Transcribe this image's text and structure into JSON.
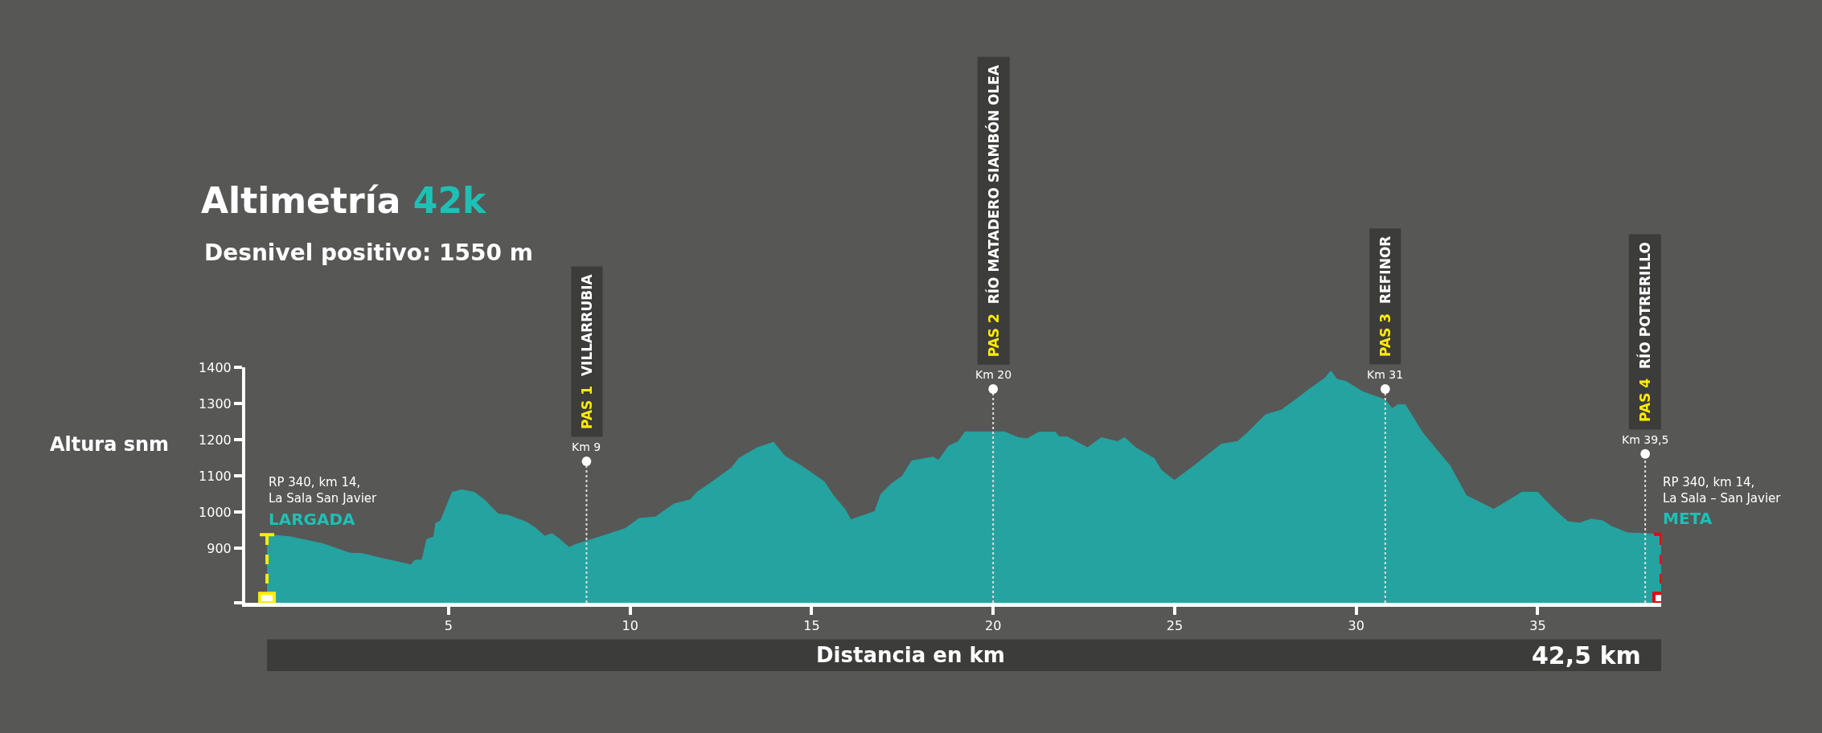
{
  "chart_data": {
    "type": "area",
    "title": "Altimetría 42k",
    "subtitle": "Desnivel positivo: 1550 m",
    "xlabel": "Distancia en km",
    "ylabel": "Altura snm",
    "x": [
      0,
      0.65,
      1.54,
      2.28,
      2.62,
      3.06,
      3.96,
      4.08,
      4.27,
      4.4,
      4.59,
      4.65,
      4.78,
      5.1,
      5.36,
      5.71,
      5.99,
      6.37,
      6.63,
      7.14,
      7.39,
      7.65,
      7.85,
      8.03,
      8.32,
      8.47,
      9.17,
      9.87,
      10.25,
      10.7,
      11.21,
      11.65,
      11.84,
      12.22,
      12.8,
      12.99,
      13.5,
      13.95,
      14.26,
      14.7,
      15.34,
      15.6,
      15.92,
      16.08,
      16.36,
      16.74,
      16.91,
      17.19,
      17.5,
      17.76,
      18.34,
      18.5,
      18.78,
      19.04,
      19.23,
      20.31,
      20.69,
      20.94,
      21.26,
      21.71,
      21.83,
      22.03,
      22.6,
      22.98,
      23.42,
      23.62,
      23.93,
      24.44,
      24.63,
      24.99,
      25.52,
      25.78,
      26.29,
      26.73,
      26.99,
      27.5,
      27.94,
      28.32,
      28.7,
      29.15,
      29.3,
      29.47,
      29.72,
      30.17,
      30.8,
      30.99,
      31.15,
      31.35,
      31.82,
      32.2,
      32.58,
      33.03,
      33.79,
      34.56,
      35,
      35.45,
      35.83,
      36.15,
      36.47,
      36.8,
      37.03,
      37.47,
      38.4
    ],
    "series": [
      {
        "color": "#25a3a0",
        "values": [
          938,
          932,
          913,
          887,
          886,
          875,
          855,
          868,
          868,
          925,
          932,
          970,
          976,
          1055,
          1062,
          1055,
          1034,
          995,
          992,
          973,
          957,
          934,
          941,
          928,
          903,
          910,
          932,
          955,
          983,
          987,
          1023,
          1034,
          1055,
          1081,
          1123,
          1148,
          1178,
          1193,
          1155,
          1129,
          1085,
          1046,
          1008,
          979,
          989,
          1002,
          1050,
          1078,
          1100,
          1142,
          1152,
          1144,
          1183,
          1195,
          1222,
          1222,
          1206,
          1203,
          1221,
          1221,
          1208,
          1208,
          1178,
          1206,
          1195,
          1206,
          1178,
          1148,
          1116,
          1088,
          1127,
          1148,
          1188,
          1195,
          1218,
          1269,
          1282,
          1310,
          1339,
          1371,
          1390,
          1367,
          1361,
          1333,
          1310,
          1286,
          1297,
          1297,
          1221,
          1174,
          1129,
          1046,
          1008,
          1055,
          1055,
          1008,
          974,
          970,
          981,
          976,
          961,
          943,
          939
        ]
      }
    ],
    "xlim": [
      -0.6,
      38.4
    ],
    "xticks": [
      5,
      10,
      15,
      20,
      25,
      30,
      35
    ],
    "ylim": [
      750,
      1400
    ],
    "yticks": [
      {
        "value": 750,
        "label": null
      },
      900,
      1000,
      1100,
      1200,
      1300,
      1400
    ],
    "ref_lines": [
      {
        "axis": "x",
        "value": 0,
        "label": "LARGADA",
        "color": "#ffed00",
        "line_style": "dashed"
      },
      {
        "axis": "x",
        "value": 38.4,
        "label": "META",
        "color": "#e30613",
        "line_style": "dashed"
      },
      {
        "axis": "x",
        "value": 8.8,
        "label": "PAS 1 VILLARRUBIA",
        "color": "#dddddd",
        "line_style": "dotted"
      },
      {
        "axis": "x",
        "value": 20,
        "label": "PAS 2 RÍO MATADERO SIAMBÓN OLEA",
        "color": "#dddddd",
        "line_style": "dotted"
      },
      {
        "axis": "x",
        "value": 30.8,
        "label": "PAS 3 REFINOR",
        "color": "#dddddd",
        "line_style": "dotted"
      },
      {
        "axis": "x",
        "value": 37.96,
        "label": "PAS 4 RÍO POTRERILLO",
        "color": "#dddddd",
        "line_style": "dotted"
      }
    ],
    "annotations": [
      "Km 9",
      "Km 20",
      "Km 31",
      "Km 39,5",
      "RP 340, km 14,\nLa Sala San Javier",
      "RP 340, km 14,\nLa Sala – San Javier",
      "42,5 km"
    ]
  }
}
